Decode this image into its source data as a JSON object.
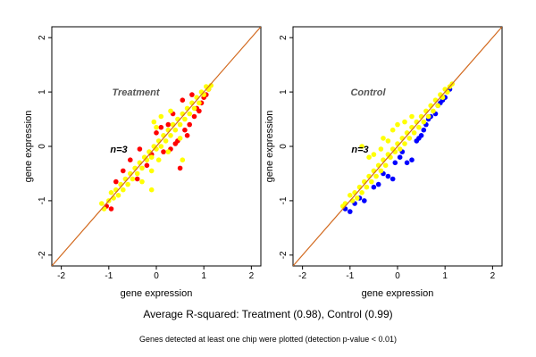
{
  "figure": {
    "summary": "Average R-squared: Treatment (0.98), Control (0.99)",
    "footnote": "Genes detected at least one chip were plotted (detection p-value < 0.01)"
  },
  "colors": {
    "bulk_points": "#ffff00",
    "diagonal": "#d2691e",
    "treatment_outliers": "#ff0000",
    "control_outliers": "#0000ff"
  },
  "chart_data": [
    {
      "type": "scatter",
      "title": "Treatment",
      "annotation": "n=3",
      "xlabel": "gene expression",
      "ylabel": "gene expression",
      "xlim": [
        -2.2,
        2.2
      ],
      "ylim": [
        -2.2,
        2.2
      ],
      "xticks": [
        -2,
        -1,
        0,
        1,
        2
      ],
      "yticks": [
        -2,
        -1,
        0,
        1,
        2
      ],
      "grid": false,
      "reference_line": "y = x",
      "series": [
        {
          "color": "#ff0000",
          "points": [
            [
              -1.05,
              -1.1
            ],
            [
              -0.95,
              -1.15
            ],
            [
              -0.85,
              -0.65
            ],
            [
              -0.7,
              -0.45
            ],
            [
              -0.55,
              -0.25
            ],
            [
              -0.4,
              -0.6
            ],
            [
              -0.35,
              -0.05
            ],
            [
              -0.2,
              -0.35
            ],
            [
              -0.1,
              -0.15
            ],
            [
              0.0,
              0.25
            ],
            [
              0.1,
              0.35
            ],
            [
              0.15,
              -0.1
            ],
            [
              0.25,
              0.4
            ],
            [
              0.3,
              -0.05
            ],
            [
              0.35,
              0.6
            ],
            [
              0.4,
              0.05
            ],
            [
              0.45,
              0.1
            ],
            [
              0.5,
              -0.4
            ],
            [
              0.55,
              0.85
            ],
            [
              0.6,
              0.3
            ],
            [
              0.65,
              0.2
            ],
            [
              0.7,
              0.4
            ],
            [
              0.75,
              0.95
            ],
            [
              0.8,
              0.55
            ],
            [
              0.85,
              0.7
            ],
            [
              0.9,
              0.65
            ],
            [
              0.95,
              0.8
            ],
            [
              1.0,
              0.9
            ],
            [
              1.05,
              0.95
            ],
            [
              1.1,
              1.05
            ]
          ]
        },
        {
          "color": "#ffff00",
          "points": [
            [
              -1.15,
              -1.05
            ],
            [
              -1.1,
              -1.15
            ],
            [
              -1.0,
              -1.0
            ],
            [
              -0.95,
              -0.85
            ],
            [
              -0.9,
              -0.95
            ],
            [
              -0.85,
              -0.8
            ],
            [
              -0.8,
              -0.9
            ],
            [
              -0.75,
              -0.7
            ],
            [
              -0.7,
              -0.8
            ],
            [
              -0.65,
              -0.6
            ],
            [
              -0.6,
              -0.7
            ],
            [
              -0.55,
              -0.5
            ],
            [
              -0.5,
              -0.6
            ],
            [
              -0.45,
              -0.4
            ],
            [
              -0.4,
              -0.5
            ],
            [
              -0.35,
              -0.3
            ],
            [
              -0.3,
              -0.4
            ],
            [
              -0.25,
              -0.2
            ],
            [
              -0.2,
              -0.25
            ],
            [
              -0.15,
              -0.1
            ],
            [
              -0.1,
              -0.2
            ],
            [
              -0.05,
              0.0
            ],
            [
              0.0,
              -0.05
            ],
            [
              0.05,
              0.1
            ],
            [
              0.1,
              0.0
            ],
            [
              0.15,
              0.2
            ],
            [
              0.2,
              0.1
            ],
            [
              0.25,
              0.3
            ],
            [
              0.3,
              0.2
            ],
            [
              0.35,
              0.4
            ],
            [
              0.4,
              0.3
            ],
            [
              0.45,
              0.5
            ],
            [
              0.5,
              0.4
            ],
            [
              0.55,
              0.6
            ],
            [
              0.6,
              0.5
            ],
            [
              0.65,
              0.7
            ],
            [
              0.7,
              0.6
            ],
            [
              0.75,
              0.8
            ],
            [
              0.8,
              0.7
            ],
            [
              0.85,
              0.9
            ],
            [
              0.9,
              0.8
            ],
            [
              0.95,
              1.0
            ],
            [
              1.0,
              0.95
            ],
            [
              1.05,
              1.1
            ],
            [
              1.1,
              1.05
            ],
            [
              1.15,
              1.12
            ],
            [
              -0.3,
              -0.65
            ],
            [
              -0.1,
              -0.45
            ],
            [
              0.0,
              0.35
            ],
            [
              0.05,
              -0.25
            ],
            [
              0.1,
              0.55
            ],
            [
              0.25,
              -0.1
            ],
            [
              0.3,
              0.65
            ],
            [
              0.5,
              0.15
            ],
            [
              0.55,
              -0.25
            ],
            [
              -0.1,
              -0.8
            ],
            [
              -0.05,
              0.45
            ]
          ]
        }
      ]
    },
    {
      "type": "scatter",
      "title": "Control",
      "annotation": "n=3",
      "xlabel": "gene expression",
      "ylabel": "gene expression",
      "xlim": [
        -2.2,
        2.2
      ],
      "ylim": [
        -2.2,
        2.2
      ],
      "xticks": [
        -2,
        -1,
        0,
        1,
        2
      ],
      "yticks": [
        -2,
        -1,
        0,
        1,
        2
      ],
      "grid": false,
      "reference_line": "y = x",
      "series": [
        {
          "color": "#0000ff",
          "points": [
            [
              -1.1,
              -1.15
            ],
            [
              -1.0,
              -1.2
            ],
            [
              -0.9,
              -1.05
            ],
            [
              -0.8,
              -0.95
            ],
            [
              -0.7,
              -1.0
            ],
            [
              -0.5,
              -0.75
            ],
            [
              -0.4,
              -0.7
            ],
            [
              -0.3,
              -0.5
            ],
            [
              -0.2,
              -0.55
            ],
            [
              -0.1,
              -0.6
            ],
            [
              -0.05,
              -0.3
            ],
            [
              0.05,
              -0.2
            ],
            [
              0.1,
              -0.1
            ],
            [
              0.2,
              -0.3
            ],
            [
              0.3,
              -0.25
            ],
            [
              0.4,
              0.1
            ],
            [
              0.45,
              0.15
            ],
            [
              0.5,
              0.2
            ],
            [
              0.55,
              0.3
            ],
            [
              0.6,
              0.4
            ],
            [
              0.65,
              0.5
            ],
            [
              0.7,
              0.55
            ],
            [
              0.8,
              0.6
            ],
            [
              0.85,
              0.75
            ],
            [
              0.9,
              0.8
            ],
            [
              0.95,
              0.85
            ],
            [
              1.0,
              0.9
            ],
            [
              1.1,
              1.05
            ]
          ]
        },
        {
          "color": "#ffff00",
          "points": [
            [
              -1.15,
              -1.1
            ],
            [
              -1.1,
              -1.05
            ],
            [
              -1.0,
              -0.9
            ],
            [
              -0.95,
              -1.0
            ],
            [
              -0.9,
              -0.85
            ],
            [
              -0.85,
              -0.95
            ],
            [
              -0.8,
              -0.75
            ],
            [
              -0.75,
              -0.85
            ],
            [
              -0.7,
              -0.65
            ],
            [
              -0.65,
              -0.75
            ],
            [
              -0.6,
              -0.55
            ],
            [
              -0.55,
              -0.65
            ],
            [
              -0.5,
              -0.45
            ],
            [
              -0.45,
              -0.55
            ],
            [
              -0.4,
              -0.35
            ],
            [
              -0.35,
              -0.45
            ],
            [
              -0.3,
              -0.25
            ],
            [
              -0.25,
              -0.35
            ],
            [
              -0.2,
              -0.15
            ],
            [
              -0.15,
              -0.2
            ],
            [
              -0.1,
              -0.05
            ],
            [
              -0.05,
              -0.1
            ],
            [
              0.0,
              0.05
            ],
            [
              0.05,
              -0.05
            ],
            [
              0.1,
              0.15
            ],
            [
              0.15,
              0.05
            ],
            [
              0.2,
              0.25
            ],
            [
              0.25,
              0.15
            ],
            [
              0.3,
              0.35
            ],
            [
              0.35,
              0.25
            ],
            [
              0.4,
              0.45
            ],
            [
              0.45,
              0.35
            ],
            [
              0.5,
              0.55
            ],
            [
              0.55,
              0.45
            ],
            [
              0.6,
              0.65
            ],
            [
              0.65,
              0.55
            ],
            [
              0.7,
              0.75
            ],
            [
              0.75,
              0.65
            ],
            [
              0.8,
              0.85
            ],
            [
              0.85,
              0.75
            ],
            [
              0.9,
              0.95
            ],
            [
              0.95,
              0.9
            ],
            [
              1.0,
              1.05
            ],
            [
              1.05,
              1.0
            ],
            [
              1.1,
              1.1
            ],
            [
              1.15,
              1.15
            ],
            [
              -0.75,
              0.0
            ],
            [
              -0.6,
              -0.2
            ],
            [
              -0.5,
              -0.15
            ],
            [
              -0.35,
              -0.05
            ],
            [
              -0.2,
              0.1
            ],
            [
              -0.1,
              0.3
            ],
            [
              0.0,
              0.4
            ],
            [
              0.15,
              0.45
            ],
            [
              -0.3,
              0.15
            ],
            [
              0.3,
              0.55
            ]
          ]
        }
      ]
    }
  ]
}
